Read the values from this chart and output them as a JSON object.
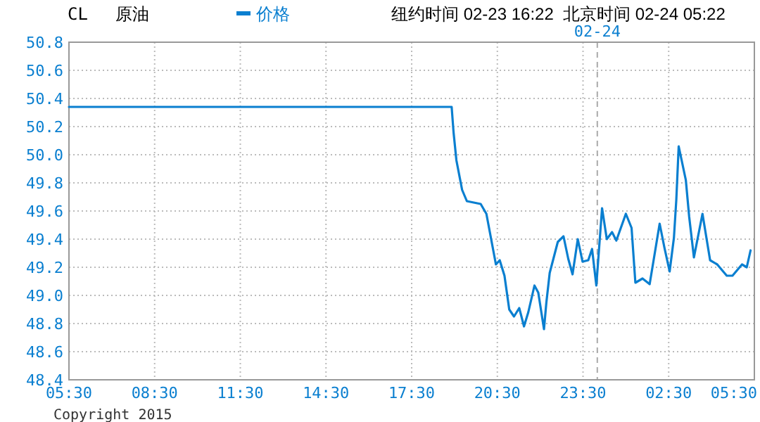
{
  "chart_data": {
    "type": "line",
    "title": "CL",
    "subtitle": "原油",
    "annotations": [
      "纽约时间 02-23 16:22",
      "北京时间 02-24 05:22",
      "Copyright 2015"
    ],
    "x": [
      "2015-02-23T05:30",
      "2015-02-23T18:54",
      "2015-02-23T18:58",
      "2015-02-23T19:04",
      "2015-02-23T19:16",
      "2015-02-23T19:26",
      "2015-02-23T19:55",
      "2015-02-23T20:07",
      "2015-02-23T20:22",
      "2015-02-23T20:27",
      "2015-02-23T20:35",
      "2015-02-23T20:45",
      "2015-02-23T20:55",
      "2015-02-23T21:05",
      "2015-02-23T21:16",
      "2015-02-23T21:26",
      "2015-02-23T21:35",
      "2015-02-23T21:48",
      "2015-02-23T21:56",
      "2015-02-23T22:08",
      "2015-02-23T22:13",
      "2015-02-23T22:20",
      "2015-02-23T22:37",
      "2015-02-23T22:49",
      "2015-02-23T22:59",
      "2015-02-23T23:08",
      "2015-02-23T23:19",
      "2015-02-23T23:29",
      "2015-02-23T23:41",
      "2015-02-23T23:49",
      "2015-02-23T23:58",
      "2015-02-24T00:10",
      "2015-02-24T00:20",
      "2015-02-24T00:31",
      "2015-02-24T00:40",
      "2015-02-24T01:00",
      "2015-02-24T01:12",
      "2015-02-24T01:20",
      "2015-02-24T01:35",
      "2015-02-24T01:50",
      "2015-02-24T02:11",
      "2015-02-24T02:21",
      "2015-02-24T02:32",
      "2015-02-24T02:41",
      "2015-02-24T02:46",
      "2015-02-24T02:51",
      "2015-02-24T03:06",
      "2015-02-24T03:13",
      "2015-02-24T03:23",
      "2015-02-24T03:41",
      "2015-02-24T03:57",
      "2015-02-24T04:12",
      "2015-02-24T04:32",
      "2015-02-24T04:44",
      "2015-02-24T05:04",
      "2015-02-24T05:14",
      "2015-02-24T05:22"
    ],
    "series": [
      {
        "name": "价格",
        "color": "#0a7fd0",
        "values": [
          50.34,
          50.34,
          50.16,
          49.96,
          49.75,
          49.67,
          49.65,
          49.58,
          49.31,
          49.22,
          49.25,
          49.14,
          48.9,
          48.85,
          48.91,
          48.78,
          48.88,
          49.07,
          49.02,
          48.76,
          48.95,
          49.16,
          49.38,
          49.42,
          49.26,
          49.15,
          49.4,
          49.24,
          49.25,
          49.33,
          49.07,
          49.62,
          49.4,
          49.45,
          49.39,
          49.58,
          49.48,
          49.09,
          49.12,
          49.08,
          49.51,
          49.34,
          49.17,
          49.41,
          49.68,
          50.06,
          49.82,
          49.56,
          49.27,
          49.58,
          49.25,
          49.22,
          49.14,
          49.14,
          49.22,
          49.2,
          49.32
        ]
      }
    ],
    "xlim": [
      "2015-02-23T05:30",
      "2015-02-24T05:30"
    ],
    "xticks": [
      {
        "value": "2015-02-23T05:30",
        "label": "05:30"
      },
      {
        "value": "2015-02-23T08:30",
        "label": "08:30"
      },
      {
        "value": "2015-02-23T11:30",
        "label": "11:30"
      },
      {
        "value": "2015-02-23T14:30",
        "label": "14:30"
      },
      {
        "value": "2015-02-23T17:30",
        "label": "17:30"
      },
      {
        "value": "2015-02-23T20:30",
        "label": "20:30"
      },
      {
        "value": "2015-02-23T23:30",
        "label": "23:30"
      },
      {
        "value": "2015-02-24T02:30",
        "label": "02:30"
      },
      {
        "value": "2015-02-24T05:30",
        "label": "05:30"
      }
    ],
    "ylim": [
      48.4,
      50.8
    ],
    "yticks": [
      {
        "value": 48.4,
        "label": "48.4"
      },
      {
        "value": 48.6,
        "label": "48.6"
      },
      {
        "value": 48.8,
        "label": "48.8"
      },
      {
        "value": 49.0,
        "label": "49.0"
      },
      {
        "value": 49.2,
        "label": "49.2"
      },
      {
        "value": 49.4,
        "label": "49.4"
      },
      {
        "value": 49.6,
        "label": "49.6"
      },
      {
        "value": 49.8,
        "label": "49.8"
      },
      {
        "value": 50.0,
        "label": "50.0"
      },
      {
        "value": 50.2,
        "label": "50.2"
      },
      {
        "value": 50.4,
        "label": "50.4"
      },
      {
        "value": 50.6,
        "label": "50.6"
      },
      {
        "value": 50.8,
        "label": "50.8"
      }
    ],
    "grid": true,
    "legend": "top",
    "ref_lines": [
      {
        "axis": "x",
        "value": "2015-02-24",
        "label": "02-24",
        "color": "#aaaaaa",
        "line_style": "dashed"
      }
    ]
  }
}
